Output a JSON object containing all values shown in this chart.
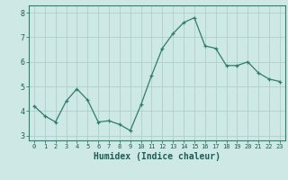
{
  "x": [
    0,
    1,
    2,
    3,
    4,
    5,
    6,
    7,
    8,
    9,
    10,
    11,
    12,
    13,
    14,
    15,
    16,
    17,
    18,
    19,
    20,
    21,
    22,
    23
  ],
  "y": [
    4.2,
    3.8,
    3.55,
    4.4,
    4.9,
    4.45,
    3.55,
    3.6,
    3.45,
    3.2,
    4.25,
    5.45,
    6.55,
    7.15,
    7.6,
    7.8,
    6.65,
    6.55,
    5.85,
    5.85,
    6.0,
    5.55,
    5.3,
    5.2
  ],
  "line_color": "#2e7d6e",
  "marker": "+",
  "marker_size": 3,
  "line_width": 0.9,
  "bg_color": "#cde8e5",
  "grid_color": "#aed0cc",
  "axis_label_color": "#1a5f55",
  "tick_color": "#1a5f55",
  "xlabel": "Humidex (Indice chaleur)",
  "xlabel_fontsize": 7,
  "xlabel_fontweight": "bold",
  "ylim": [
    2.8,
    8.3
  ],
  "xlim": [
    -0.5,
    23.5
  ],
  "yticks": [
    3,
    4,
    5,
    6,
    7,
    8
  ],
  "spine_color": "#2e7d6e",
  "font_family": "monospace"
}
